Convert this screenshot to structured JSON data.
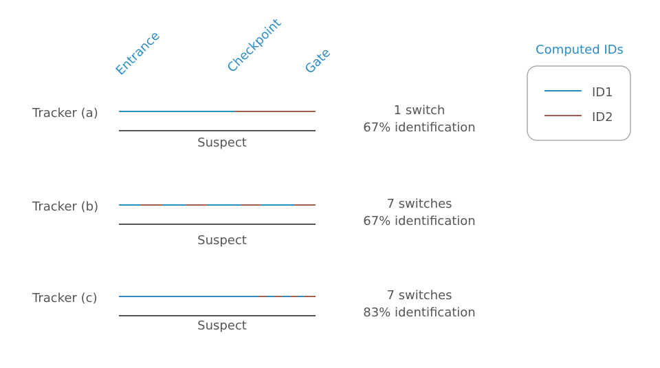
{
  "legend": {
    "title": "Computed IDs",
    "items": [
      {
        "label": "ID1",
        "color": "#2b8cc4"
      },
      {
        "label": "ID2",
        "color": "#a0604a"
      }
    ]
  },
  "locations": [
    "Entrance",
    "Checkpoint",
    "Gate"
  ],
  "suspect_label": "Suspect",
  "colors": {
    "id1": "#2b8cc4",
    "id2": "#a0604a",
    "ground_truth": "#555555",
    "text": "#555555",
    "accent_text": "#2b8cc4",
    "legend_border": "#aaaaaa"
  },
  "trackers": [
    {
      "name": "Tracker (a)",
      "switches": "1 switch",
      "identification": "67% identification",
      "segments": [
        {
          "from": 0.0,
          "to": 0.59,
          "id": "id1"
        },
        {
          "from": 0.59,
          "to": 1.0,
          "id": "id2"
        }
      ]
    },
    {
      "name": "Tracker (b)",
      "switches": "7 switches",
      "identification": "67% identification",
      "segments": [
        {
          "from": 0.0,
          "to": 0.11,
          "id": "id1"
        },
        {
          "from": 0.11,
          "to": 0.22,
          "id": "id2"
        },
        {
          "from": 0.22,
          "to": 0.34,
          "id": "id1"
        },
        {
          "from": 0.34,
          "to": 0.45,
          "id": "id2"
        },
        {
          "from": 0.45,
          "to": 0.62,
          "id": "id1"
        },
        {
          "from": 0.62,
          "to": 0.72,
          "id": "id2"
        },
        {
          "from": 0.72,
          "to": 0.89,
          "id": "id1"
        },
        {
          "from": 0.89,
          "to": 1.0,
          "id": "id2"
        }
      ]
    },
    {
      "name": "Tracker (c)",
      "switches": "7 switches",
      "identification": "83% identification",
      "segments": [
        {
          "from": 0.0,
          "to": 0.71,
          "id": "id1"
        },
        {
          "from": 0.71,
          "to": 0.75,
          "id": "id2"
        },
        {
          "from": 0.75,
          "to": 0.79,
          "id": "id1"
        },
        {
          "from": 0.79,
          "to": 0.83,
          "id": "id2"
        },
        {
          "from": 0.83,
          "to": 0.87,
          "id": "id1"
        },
        {
          "from": 0.87,
          "to": 0.91,
          "id": "id2"
        },
        {
          "from": 0.91,
          "to": 0.94,
          "id": "id1"
        },
        {
          "from": 0.94,
          "to": 1.0,
          "id": "id2"
        }
      ]
    }
  ]
}
